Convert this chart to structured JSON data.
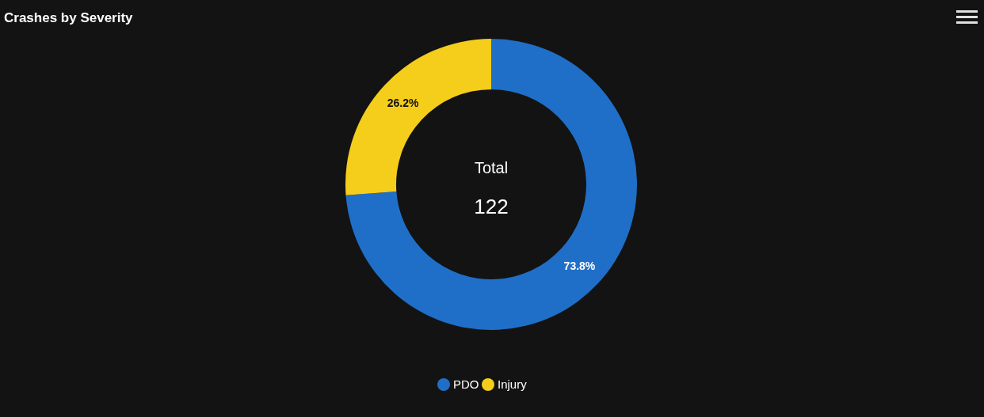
{
  "chart_data": {
    "type": "donut",
    "title": "Crashes by Severity",
    "categories": [
      "PDO",
      "Injury"
    ],
    "values": [
      73.8,
      26.2
    ],
    "colors": [
      "#1f6fc8",
      "#f5cd1b"
    ],
    "value_labels": [
      "73.8%",
      "26.2%"
    ],
    "annotations": [
      "Total",
      "122"
    ],
    "legend": "bottom"
  }
}
